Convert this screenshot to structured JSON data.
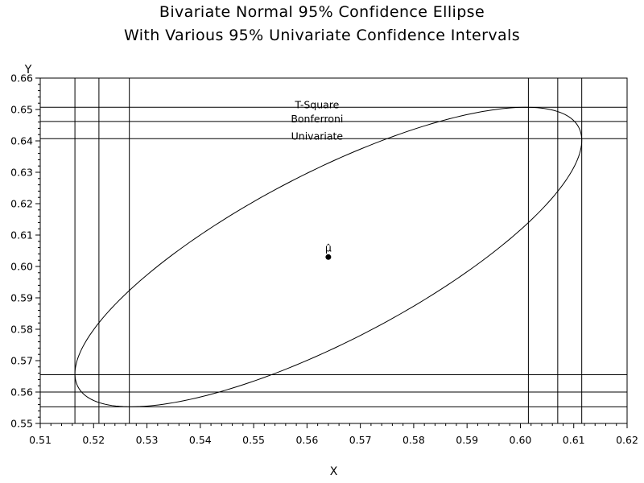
{
  "title": {
    "line1": "Bivariate Normal 95% Confidence Ellipse",
    "line2": "With Various 95% Univariate Confidence Intervals"
  },
  "chart_data": {
    "type": "scatter",
    "xlabel": "X",
    "ylabel": "Y",
    "xlim": [
      0.51,
      0.62
    ],
    "ylim": [
      0.55,
      0.66
    ],
    "x_ticks": [
      0.51,
      0.52,
      0.53,
      0.54,
      0.55,
      0.56,
      0.57,
      0.58,
      0.59,
      0.6,
      0.61,
      0.62
    ],
    "x_tick_labels": [
      "0.51",
      "0.52",
      "0.53",
      "0.54",
      "0.55",
      "0.56",
      "0.57",
      "0.58",
      "0.59",
      "0.60",
      "0.61",
      "0.62"
    ],
    "y_ticks": [
      0.55,
      0.56,
      0.57,
      0.58,
      0.59,
      0.6,
      0.61,
      0.62,
      0.63,
      0.64,
      0.65,
      0.66
    ],
    "y_tick_labels": [
      "0.55",
      "0.56",
      "0.57",
      "0.58",
      "0.59",
      "0.60",
      "0.61",
      "0.62",
      "0.63",
      "0.64",
      "0.65",
      "0.66"
    ],
    "minor_ticks_per_interval": 5,
    "mean_point": {
      "x": 0.564,
      "y": 0.603,
      "label": "μ̂"
    },
    "ellipse": {
      "center": [
        0.564,
        0.603
      ],
      "x_range": [
        0.5165,
        0.6115
      ],
      "y_range": [
        0.5553,
        0.6507
      ],
      "x_at_y_max": 0.601,
      "x_at_y_min": 0.527
    },
    "intervals": [
      {
        "name": "T-Square",
        "x": [
          0.5165,
          0.6115
        ],
        "y": [
          0.5553,
          0.6507
        ]
      },
      {
        "name": "Bonferroni",
        "x": [
          0.521,
          0.607
        ],
        "y": [
          0.56,
          0.6462
        ]
      },
      {
        "name": "Univariate",
        "x": [
          0.5267,
          0.6015
        ],
        "y": [
          0.5655,
          0.6407
        ]
      }
    ],
    "grid": false
  }
}
